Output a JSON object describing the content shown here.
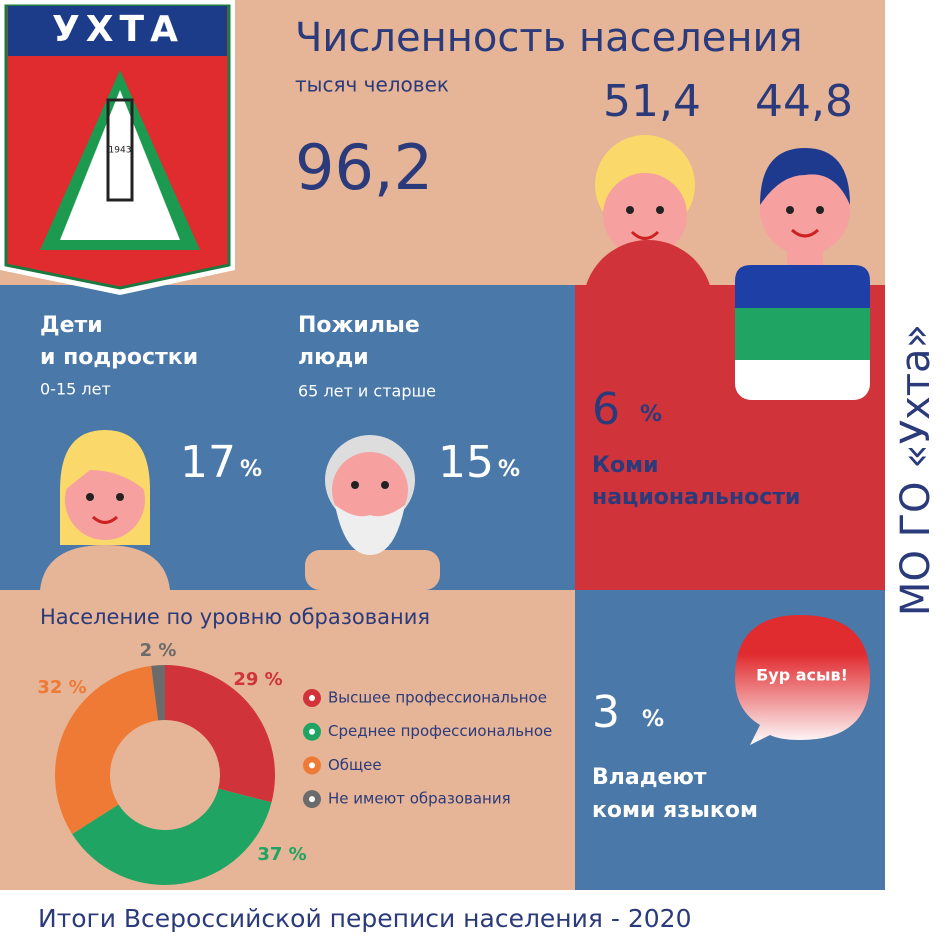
{
  "header": {
    "emblem": "УХТА",
    "year": "1943",
    "title": "Численность населения",
    "subtitle": "тысяч человек",
    "total": "96,2",
    "women": "51,4",
    "men": "44,8"
  },
  "children": {
    "title": [
      "Дети",
      "и подростки"
    ],
    "subtitle": "0-15 лет",
    "value": "17",
    "unit": "%"
  },
  "elderly": {
    "title": [
      "Пожилые",
      "люди"
    ],
    "subtitle": "65 лет и старше",
    "value": "15",
    "unit": "%"
  },
  "komi": {
    "value": "6",
    "unit": "%",
    "text": [
      "Коми",
      "национальности"
    ]
  },
  "language": {
    "value": "3",
    "unit": "%",
    "text": [
      "Владеют",
      "коми языком"
    ],
    "bubble": "Бур асыв!"
  },
  "side": "МО ГО «Ухта»",
  "footer": "Итоги Всероссийской переписи населения - 2020",
  "chart_data": {
    "type": "pie",
    "title": "Население по уровню образования",
    "categories": [
      "Высшее профессиональное",
      "Среднее профессиональное",
      "Общее",
      "Не имеют образования"
    ],
    "values": [
      29,
      37,
      32,
      2
    ],
    "value_labels": [
      "29 %",
      "37 %",
      "32 %",
      "2 %"
    ],
    "colors": [
      "#d0343a",
      "#1fa463",
      "#ee7a35",
      "#6b6b6b"
    ]
  }
}
